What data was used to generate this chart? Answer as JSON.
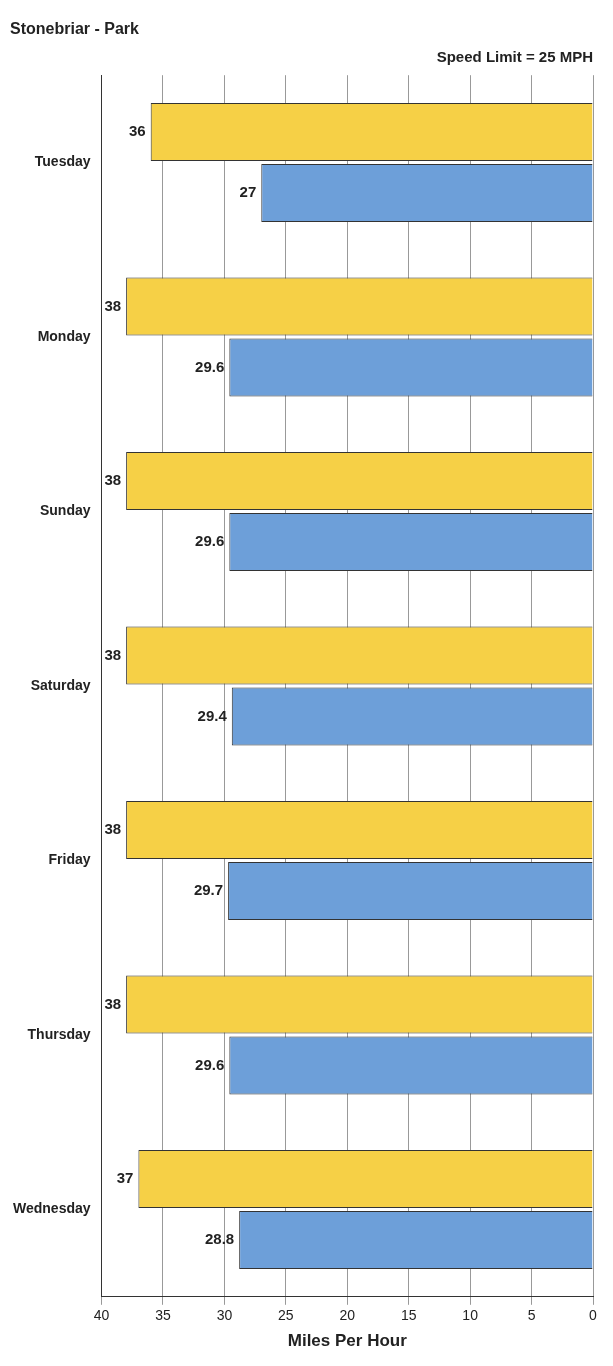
{
  "chart_data": {
    "type": "bar",
    "orientation": "horizontal",
    "title": "Stonebriar - Park",
    "xlabel": "Miles Per Hour",
    "categories": [
      "Tuesday",
      "Monday",
      "Sunday",
      "Saturday",
      "Friday",
      "Thursday",
      "Wednesday"
    ],
    "series": [
      {
        "color": "#f6d046",
        "values": [
          36,
          38,
          38,
          38,
          38,
          38,
          37
        ]
      },
      {
        "color": "#6d9fd9",
        "values": [
          27,
          29.6,
          29.6,
          29.4,
          29.7,
          29.6,
          28.8
        ]
      }
    ],
    "xlim": [
      40,
      0
    ],
    "xticks": [
      40,
      35,
      30,
      25,
      20,
      15,
      10,
      5,
      0
    ],
    "grid": "x",
    "data_labels": true,
    "legend": false,
    "annotations": [
      "Speed Limit = 25 MPH"
    ]
  }
}
